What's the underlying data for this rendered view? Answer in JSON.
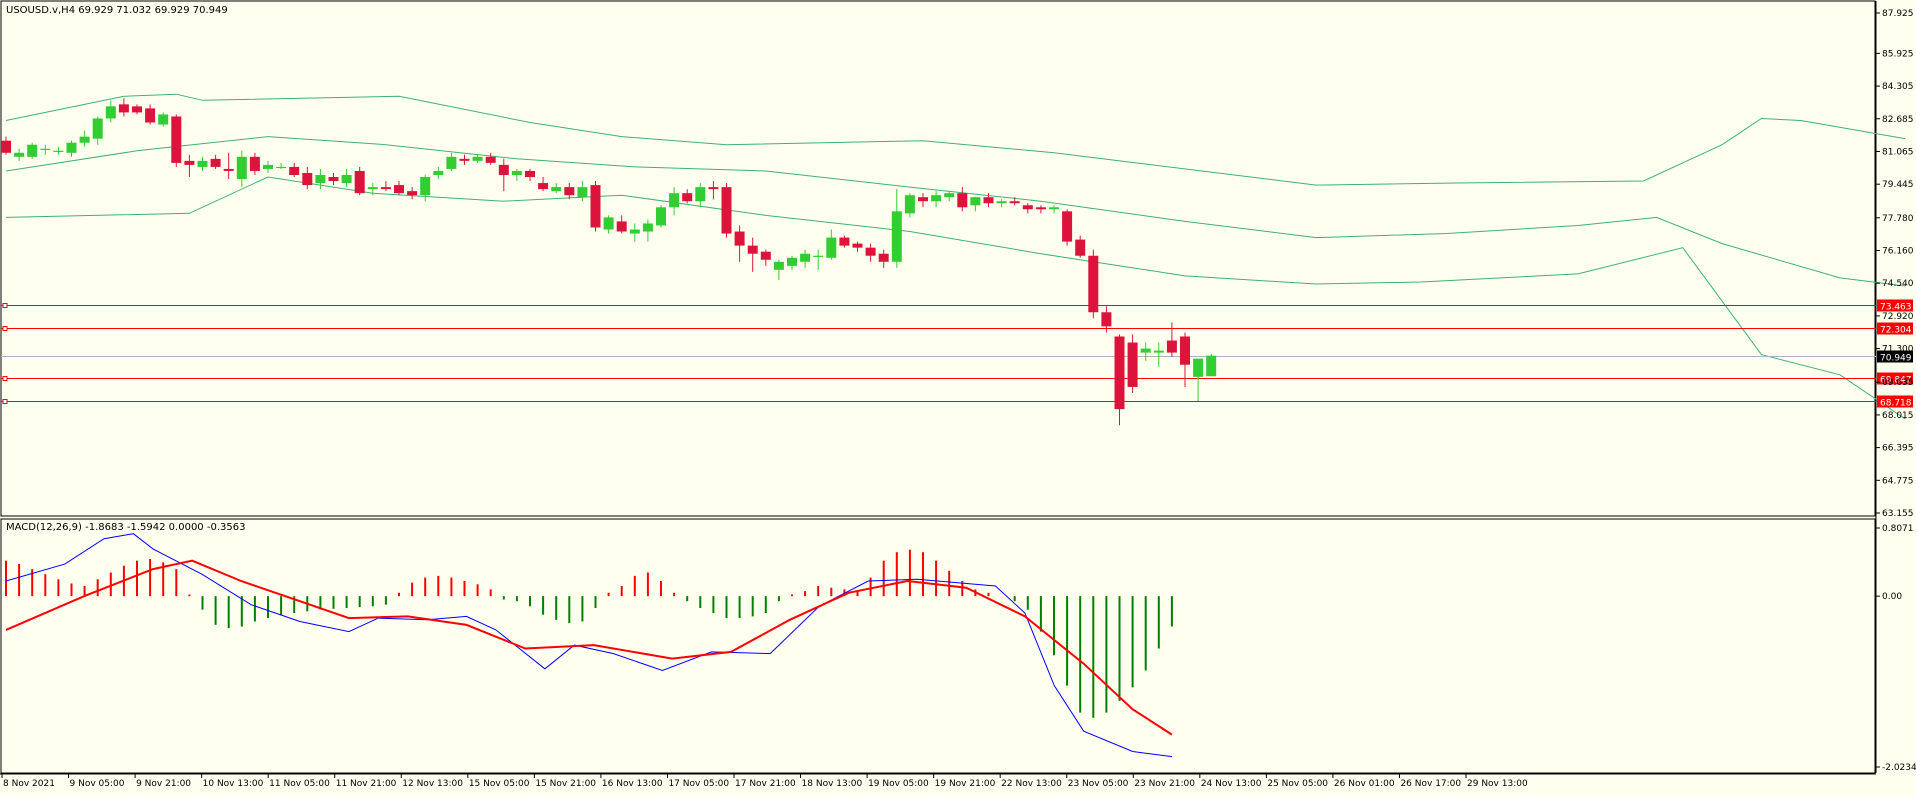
{
  "header": {
    "price_title": "USOUSD.v,H4  69.929 71.032 69.929 70.949",
    "macd_title": "MACD(12,26,9) -1.8683 -1.5942 0.0000 -0.3563"
  },
  "colors": {
    "background": "#fffff0",
    "bull": "#32cd32",
    "bear": "#dc143c",
    "bollinger": "#3cb371",
    "level_line": "#ff0000",
    "current_price_line": "#a9b5c0",
    "macd_line": "#0000ff",
    "signal_line": "#ff0000",
    "hist_positive": "#ff0000",
    "hist_negative": "#008000"
  },
  "chart_data": [
    {
      "type": "candlestick",
      "symbol": "USOUSD.v",
      "timeframe": "H4",
      "ohlc_last": {
        "open": 69.929,
        "high": 71.032,
        "low": 69.929,
        "close": 70.949
      },
      "y_ticks": [
        87.925,
        85.925,
        84.305,
        82.685,
        81.065,
        79.445,
        77.78,
        76.16,
        74.54,
        72.92,
        71.3,
        69.635,
        68.015,
        66.395,
        64.775,
        63.155
      ],
      "y_tick_labels": [
        "87.925",
        "85.925",
        "84.305",
        "82.685",
        "81.065",
        "79.445",
        "77.780",
        "76.160",
        "74.540",
        "72.920",
        "71.300",
        "69.635",
        "68.015",
        "66.395",
        "64.775",
        "63.155"
      ],
      "ylim": [
        63.155,
        87.925
      ],
      "x_labels": [
        "8 Nov 2021",
        "9 Nov 05:00",
        "9 Nov 21:00",
        "10 Nov 13:00",
        "11 Nov 05:00",
        "11 Nov 21:00",
        "12 Nov 13:00",
        "15 Nov 05:00",
        "15 Nov 21:00",
        "16 Nov 13:00",
        "17 Nov 05:00",
        "17 Nov 21:00",
        "18 Nov 13:00",
        "19 Nov 05:00",
        "19 Nov 21:00",
        "22 Nov 13:00",
        "23 Nov 05:00",
        "23 Nov 21:00",
        "24 Nov 13:00",
        "25 Nov 05:00",
        "26 Nov 01:00",
        "26 Nov 17:00",
        "29 Nov 13:00"
      ],
      "candles": [
        {
          "o": 81.6,
          "h": 81.8,
          "l": 80.9,
          "c": 81.0
        },
        {
          "o": 80.8,
          "h": 81.2,
          "l": 80.6,
          "c": 81.0
        },
        {
          "o": 80.8,
          "h": 81.5,
          "l": 80.7,
          "c": 81.4
        },
        {
          "o": 81.2,
          "h": 81.4,
          "l": 80.9,
          "c": 81.2
        },
        {
          "o": 81.1,
          "h": 81.3,
          "l": 80.9,
          "c": 81.1
        },
        {
          "o": 81.0,
          "h": 81.6,
          "l": 80.8,
          "c": 81.5
        },
        {
          "o": 81.5,
          "h": 82.1,
          "l": 81.3,
          "c": 81.8
        },
        {
          "o": 81.7,
          "h": 82.8,
          "l": 81.4,
          "c": 82.7
        },
        {
          "o": 82.7,
          "h": 83.6,
          "l": 82.5,
          "c": 83.3
        },
        {
          "o": 83.4,
          "h": 83.7,
          "l": 82.8,
          "c": 83.0
        },
        {
          "o": 83.3,
          "h": 83.4,
          "l": 82.9,
          "c": 83.0
        },
        {
          "o": 83.2,
          "h": 83.4,
          "l": 82.4,
          "c": 82.5
        },
        {
          "o": 82.4,
          "h": 83.0,
          "l": 82.3,
          "c": 82.9
        },
        {
          "o": 82.8,
          "h": 82.9,
          "l": 80.3,
          "c": 80.5
        },
        {
          "o": 80.6,
          "h": 80.9,
          "l": 79.8,
          "c": 80.4
        },
        {
          "o": 80.3,
          "h": 80.8,
          "l": 80.1,
          "c": 80.6
        },
        {
          "o": 80.7,
          "h": 80.9,
          "l": 80.2,
          "c": 80.3
        },
        {
          "o": 80.2,
          "h": 81.0,
          "l": 79.7,
          "c": 80.1
        },
        {
          "o": 79.7,
          "h": 81.1,
          "l": 79.3,
          "c": 80.8
        },
        {
          "o": 80.8,
          "h": 81.0,
          "l": 79.9,
          "c": 80.1
        },
        {
          "o": 80.2,
          "h": 80.6,
          "l": 80.0,
          "c": 80.4
        },
        {
          "o": 80.3,
          "h": 80.5,
          "l": 80.2,
          "c": 80.3
        },
        {
          "o": 80.3,
          "h": 80.5,
          "l": 79.8,
          "c": 79.9
        },
        {
          "o": 80.0,
          "h": 80.3,
          "l": 79.2,
          "c": 79.4
        },
        {
          "o": 79.5,
          "h": 80.2,
          "l": 79.2,
          "c": 79.9
        },
        {
          "o": 79.8,
          "h": 80.0,
          "l": 79.4,
          "c": 79.6
        },
        {
          "o": 79.5,
          "h": 80.2,
          "l": 79.3,
          "c": 79.9
        },
        {
          "o": 80.1,
          "h": 80.3,
          "l": 78.9,
          "c": 79.0
        },
        {
          "o": 79.2,
          "h": 79.5,
          "l": 78.9,
          "c": 79.3
        },
        {
          "o": 79.3,
          "h": 79.6,
          "l": 79.1,
          "c": 79.2
        },
        {
          "o": 79.4,
          "h": 79.6,
          "l": 78.9,
          "c": 79.0
        },
        {
          "o": 79.1,
          "h": 79.3,
          "l": 78.7,
          "c": 78.9
        },
        {
          "o": 78.9,
          "h": 79.9,
          "l": 78.6,
          "c": 79.8
        },
        {
          "o": 79.9,
          "h": 80.3,
          "l": 79.7,
          "c": 80.1
        },
        {
          "o": 80.2,
          "h": 81.0,
          "l": 80.1,
          "c": 80.8
        },
        {
          "o": 80.7,
          "h": 80.9,
          "l": 80.4,
          "c": 80.6
        },
        {
          "o": 80.6,
          "h": 80.9,
          "l": 80.5,
          "c": 80.8
        },
        {
          "o": 80.8,
          "h": 81.0,
          "l": 80.4,
          "c": 80.5
        },
        {
          "o": 80.4,
          "h": 80.7,
          "l": 79.1,
          "c": 79.9
        },
        {
          "o": 79.9,
          "h": 80.2,
          "l": 79.6,
          "c": 80.1
        },
        {
          "o": 80.1,
          "h": 80.2,
          "l": 79.6,
          "c": 79.8
        },
        {
          "o": 79.5,
          "h": 79.8,
          "l": 79.1,
          "c": 79.2
        },
        {
          "o": 79.1,
          "h": 79.5,
          "l": 79.0,
          "c": 79.3
        },
        {
          "o": 79.3,
          "h": 79.5,
          "l": 78.7,
          "c": 78.9
        },
        {
          "o": 78.8,
          "h": 79.6,
          "l": 78.6,
          "c": 79.3
        },
        {
          "o": 79.4,
          "h": 79.6,
          "l": 77.1,
          "c": 77.3
        },
        {
          "o": 77.2,
          "h": 77.9,
          "l": 77.0,
          "c": 77.8
        },
        {
          "o": 77.6,
          "h": 77.9,
          "l": 77.0,
          "c": 77.1
        },
        {
          "o": 77.0,
          "h": 77.5,
          "l": 76.6,
          "c": 77.2
        },
        {
          "o": 77.1,
          "h": 77.7,
          "l": 76.6,
          "c": 77.5
        },
        {
          "o": 77.4,
          "h": 78.4,
          "l": 77.3,
          "c": 78.3
        },
        {
          "o": 78.3,
          "h": 79.3,
          "l": 77.9,
          "c": 79.0
        },
        {
          "o": 79.0,
          "h": 79.2,
          "l": 78.5,
          "c": 78.6
        },
        {
          "o": 78.6,
          "h": 79.5,
          "l": 78.3,
          "c": 79.3
        },
        {
          "o": 79.3,
          "h": 79.6,
          "l": 78.7,
          "c": 79.2
        },
        {
          "o": 79.3,
          "h": 79.5,
          "l": 76.8,
          "c": 77.0
        },
        {
          "o": 77.1,
          "h": 77.4,
          "l": 75.6,
          "c": 76.4
        },
        {
          "o": 76.4,
          "h": 76.8,
          "l": 75.1,
          "c": 76.0
        },
        {
          "o": 76.1,
          "h": 76.2,
          "l": 75.4,
          "c": 75.7
        },
        {
          "o": 75.2,
          "h": 75.7,
          "l": 74.7,
          "c": 75.6
        },
        {
          "o": 75.4,
          "h": 75.9,
          "l": 75.2,
          "c": 75.8
        },
        {
          "o": 75.6,
          "h": 76.2,
          "l": 75.3,
          "c": 76.0
        },
        {
          "o": 75.9,
          "h": 76.2,
          "l": 75.2,
          "c": 75.9
        },
        {
          "o": 75.8,
          "h": 77.2,
          "l": 75.7,
          "c": 76.8
        },
        {
          "o": 76.8,
          "h": 76.9,
          "l": 76.3,
          "c": 76.4
        },
        {
          "o": 76.5,
          "h": 76.6,
          "l": 76.1,
          "c": 76.3
        },
        {
          "o": 76.3,
          "h": 76.5,
          "l": 75.6,
          "c": 75.9
        },
        {
          "o": 76.0,
          "h": 76.2,
          "l": 75.3,
          "c": 75.6
        },
        {
          "o": 75.6,
          "h": 79.2,
          "l": 75.3,
          "c": 78.1
        },
        {
          "o": 78.0,
          "h": 79.0,
          "l": 77.8,
          "c": 78.9
        },
        {
          "o": 78.8,
          "h": 79.0,
          "l": 78.3,
          "c": 78.6
        },
        {
          "o": 78.6,
          "h": 79.1,
          "l": 78.3,
          "c": 78.9
        },
        {
          "o": 78.8,
          "h": 79.1,
          "l": 78.6,
          "c": 79.0
        },
        {
          "o": 79.0,
          "h": 79.3,
          "l": 78.1,
          "c": 78.3
        },
        {
          "o": 78.4,
          "h": 78.8,
          "l": 78.1,
          "c": 78.8
        },
        {
          "o": 78.8,
          "h": 79.0,
          "l": 78.3,
          "c": 78.5
        },
        {
          "o": 78.5,
          "h": 78.7,
          "l": 78.3,
          "c": 78.6
        },
        {
          "o": 78.6,
          "h": 78.8,
          "l": 78.4,
          "c": 78.5
        },
        {
          "o": 78.4,
          "h": 78.5,
          "l": 78.0,
          "c": 78.2
        },
        {
          "o": 78.3,
          "h": 78.4,
          "l": 78.0,
          "c": 78.2
        },
        {
          "o": 78.2,
          "h": 78.4,
          "l": 78.0,
          "c": 78.3
        },
        {
          "o": 78.1,
          "h": 78.2,
          "l": 76.4,
          "c": 76.6
        },
        {
          "o": 76.7,
          "h": 76.9,
          "l": 75.8,
          "c": 75.9
        },
        {
          "o": 75.9,
          "h": 76.2,
          "l": 72.8,
          "c": 73.1
        },
        {
          "o": 73.1,
          "h": 73.4,
          "l": 72.1,
          "c": 72.4
        },
        {
          "o": 71.9,
          "h": 72.0,
          "l": 67.5,
          "c": 68.3
        },
        {
          "o": 71.6,
          "h": 72.0,
          "l": 69.1,
          "c": 69.4
        },
        {
          "o": 71.1,
          "h": 71.6,
          "l": 70.7,
          "c": 71.3
        },
        {
          "o": 71.1,
          "h": 71.6,
          "l": 70.4,
          "c": 71.2
        },
        {
          "o": 71.7,
          "h": 72.6,
          "l": 70.9,
          "c": 71.1
        },
        {
          "o": 71.9,
          "h": 72.1,
          "l": 69.4,
          "c": 70.5
        },
        {
          "o": 69.9,
          "h": 70.8,
          "l": 68.7,
          "c": 70.8
        },
        {
          "o": 69.929,
          "h": 71.032,
          "l": 69.929,
          "c": 70.949
        }
      ],
      "bollinger_upper": [
        [
          0,
          82.6
        ],
        [
          9,
          83.8
        ],
        [
          13,
          83.9
        ],
        [
          15,
          83.6
        ],
        [
          30,
          83.8
        ],
        [
          40,
          82.5
        ],
        [
          47,
          81.8
        ],
        [
          55,
          81.4
        ],
        [
          70,
          81.6
        ],
        [
          80,
          81.0
        ],
        [
          100,
          79.4
        ],
        [
          110,
          79.5
        ],
        [
          125,
          79.6
        ],
        [
          131,
          81.4
        ],
        [
          134,
          82.7
        ],
        [
          137,
          82.6
        ],
        [
          145,
          81.7
        ]
      ],
      "bollinger_middle": [
        [
          0,
          80.1
        ],
        [
          10,
          81.1
        ],
        [
          20,
          81.8
        ],
        [
          29,
          81.4
        ],
        [
          39,
          80.7
        ],
        [
          48,
          80.3
        ],
        [
          58,
          80.1
        ],
        [
          69,
          79.3
        ],
        [
          79,
          78.6
        ],
        [
          90,
          77.6
        ],
        [
          100,
          76.8
        ],
        [
          110,
          77.0
        ],
        [
          120,
          77.4
        ],
        [
          126,
          77.8
        ],
        [
          131,
          76.5
        ],
        [
          140,
          74.8
        ],
        [
          145,
          74.4
        ]
      ],
      "bollinger_lower": [
        [
          0,
          77.8
        ],
        [
          14,
          78.0
        ],
        [
          20,
          79.8
        ],
        [
          28,
          79.0
        ],
        [
          38,
          78.6
        ],
        [
          47,
          78.9
        ],
        [
          58,
          77.9
        ],
        [
          69,
          77.1
        ],
        [
          79,
          76.0
        ],
        [
          90,
          74.9
        ],
        [
          100,
          74.5
        ],
        [
          108,
          74.6
        ],
        [
          120,
          75.0
        ],
        [
          128,
          76.3
        ],
        [
          134,
          71.0
        ],
        [
          140,
          70.0
        ],
        [
          145,
          67.8
        ]
      ],
      "level_lines": [
        {
          "value": 73.463,
          "label": "73.463"
        },
        {
          "value": 72.304,
          "label": "72.304"
        },
        {
          "value": 69.847,
          "label": "69.847"
        },
        {
          "value": 68.718,
          "label": "68.718"
        }
      ],
      "current_price": {
        "value": 70.949,
        "label": "70.949"
      }
    },
    {
      "type": "macd",
      "title": "MACD(12,26,9)",
      "params": [
        12,
        26,
        9
      ],
      "values": {
        "main": -1.8683,
        "signal": -1.5942,
        "histogram_zero": 0.0,
        "histogram": -0.3563
      },
      "y_ticks": [
        0.8071,
        0.0,
        -2.0234
      ],
      "y_tick_labels": [
        "0.8071",
        "0.00",
        "-2.0234"
      ],
      "ylim": [
        -2.0234,
        0.8071
      ],
      "histogram": [
        0.42,
        0.38,
        0.32,
        0.26,
        0.2,
        0.15,
        0.12,
        0.2,
        0.28,
        0.36,
        0.42,
        0.44,
        0.4,
        0.32,
        0.02,
        -0.16,
        -0.34,
        -0.38,
        -0.36,
        -0.3,
        -0.26,
        -0.22,
        -0.2,
        -0.18,
        -0.16,
        -0.15,
        -0.14,
        -0.13,
        -0.12,
        -0.1,
        0.04,
        0.16,
        0.22,
        0.24,
        0.22,
        0.18,
        0.14,
        0.08,
        -0.04,
        -0.06,
        -0.12,
        -0.22,
        -0.28,
        -0.32,
        -0.3,
        -0.14,
        0.04,
        0.12,
        0.24,
        0.28,
        0.18,
        0.04,
        -0.06,
        -0.14,
        -0.2,
        -0.26,
        -0.26,
        -0.24,
        -0.2,
        -0.06,
        0.02,
        0.06,
        0.12,
        0.1,
        0.08,
        0.06,
        0.22,
        0.42,
        0.52,
        0.55,
        0.52,
        0.42,
        0.3,
        0.18,
        0.08,
        0.04,
        0.0,
        -0.06,
        -0.16,
        -0.42,
        -0.7,
        -1.06,
        -1.38,
        -1.44,
        -1.38,
        -1.24,
        -1.08,
        -0.88,
        -0.62,
        -0.36
      ],
      "macd_line": [
        [
          0,
          0.18
        ],
        [
          6,
          0.38
        ],
        [
          10,
          0.68
        ],
        [
          13,
          0.74
        ],
        [
          15,
          0.56
        ],
        [
          20,
          0.26
        ],
        [
          25,
          -0.1
        ],
        [
          30,
          -0.3
        ],
        [
          35,
          -0.42
        ],
        [
          38,
          -0.26
        ],
        [
          43,
          -0.28
        ],
        [
          47,
          -0.24
        ],
        [
          50,
          -0.4
        ],
        [
          55,
          -0.86
        ],
        [
          58,
          -0.58
        ],
        [
          62,
          -0.68
        ],
        [
          67,
          -0.88
        ],
        [
          72,
          -0.66
        ],
        [
          78,
          -0.68
        ],
        [
          83,
          -0.12
        ],
        [
          88,
          0.18
        ],
        [
          93,
          0.2
        ],
        [
          97,
          0.16
        ],
        [
          101,
          0.12
        ],
        [
          104,
          -0.2
        ],
        [
          107,
          -1.06
        ],
        [
          110,
          -1.6
        ],
        [
          115,
          -1.84
        ],
        [
          119,
          -1.9
        ]
      ],
      "signal_line": [
        [
          0,
          -0.4
        ],
        [
          8,
          0.0
        ],
        [
          15,
          0.32
        ],
        [
          19,
          0.42
        ],
        [
          24,
          0.18
        ],
        [
          30,
          -0.06
        ],
        [
          35,
          -0.26
        ],
        [
          41,
          -0.24
        ],
        [
          47,
          -0.34
        ],
        [
          53,
          -0.62
        ],
        [
          60,
          -0.58
        ],
        [
          68,
          -0.74
        ],
        [
          74,
          -0.66
        ],
        [
          80,
          -0.28
        ],
        [
          86,
          0.04
        ],
        [
          92,
          0.18
        ],
        [
          98,
          0.1
        ],
        [
          104,
          -0.24
        ],
        [
          110,
          -0.8
        ],
        [
          115,
          -1.34
        ],
        [
          119,
          -1.64
        ]
      ],
      "x_labels": []
    }
  ]
}
